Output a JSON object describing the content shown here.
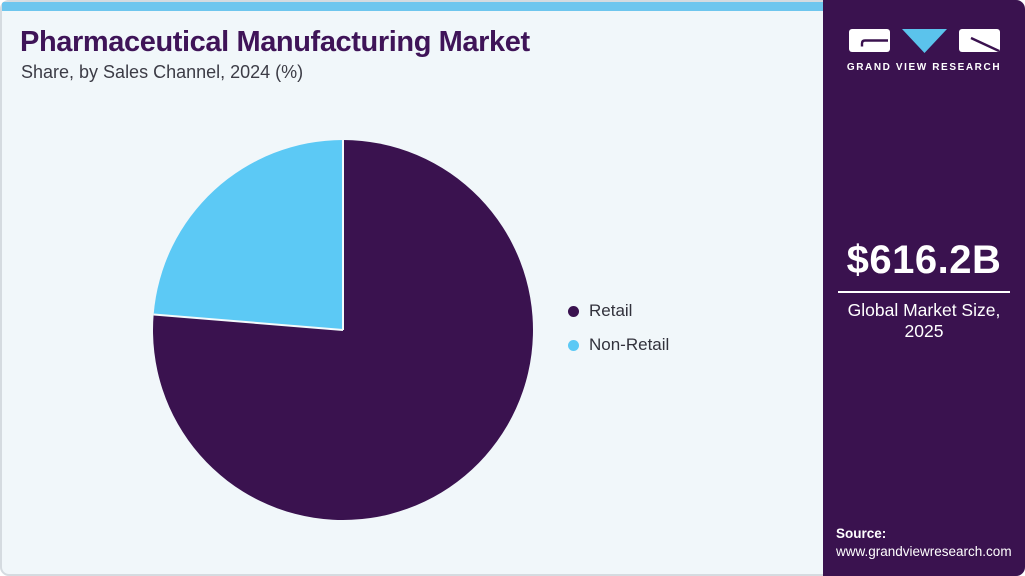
{
  "header": {
    "title": "Pharmaceutical Manufacturing Market",
    "subtitle": "Share, by Sales Channel, 2024 (%)"
  },
  "chart_data": {
    "type": "pie",
    "title": "Pharmaceutical Manufacturing Market Share, by Sales Channel, 2024 (%)",
    "labels": [
      "Retail",
      "Non-Retail"
    ],
    "values": [
      76.3,
      23.7
    ],
    "unit": "%",
    "colors": [
      "#3A124F",
      "#5CC9F5"
    ],
    "start_angle_deg": 0,
    "direction": "clockwise",
    "legend_position": "right",
    "separator_color": "#F4FAFC"
  },
  "sidebar": {
    "logo_wordmark": "GRAND VIEW RESEARCH",
    "market_size_value": "$616.2B",
    "market_size_caption": "Global Market Size, 2025",
    "source_label": "Source:",
    "source_url": "www.grandviewresearch.com"
  },
  "theme": {
    "card_background": "#F1F7FA",
    "topbar_color": "#6EC6EE",
    "sidebar_background": "#3A124F",
    "brand_purple": "#3A124F",
    "accent_blue": "#5CC9F5",
    "logo_triangle_blue": "#5BC3EC",
    "title_color": "#3F1458",
    "subtitle_color": "#3C3C46",
    "legend_text_color": "#32323C",
    "border_color": "#D5DBE0"
  }
}
